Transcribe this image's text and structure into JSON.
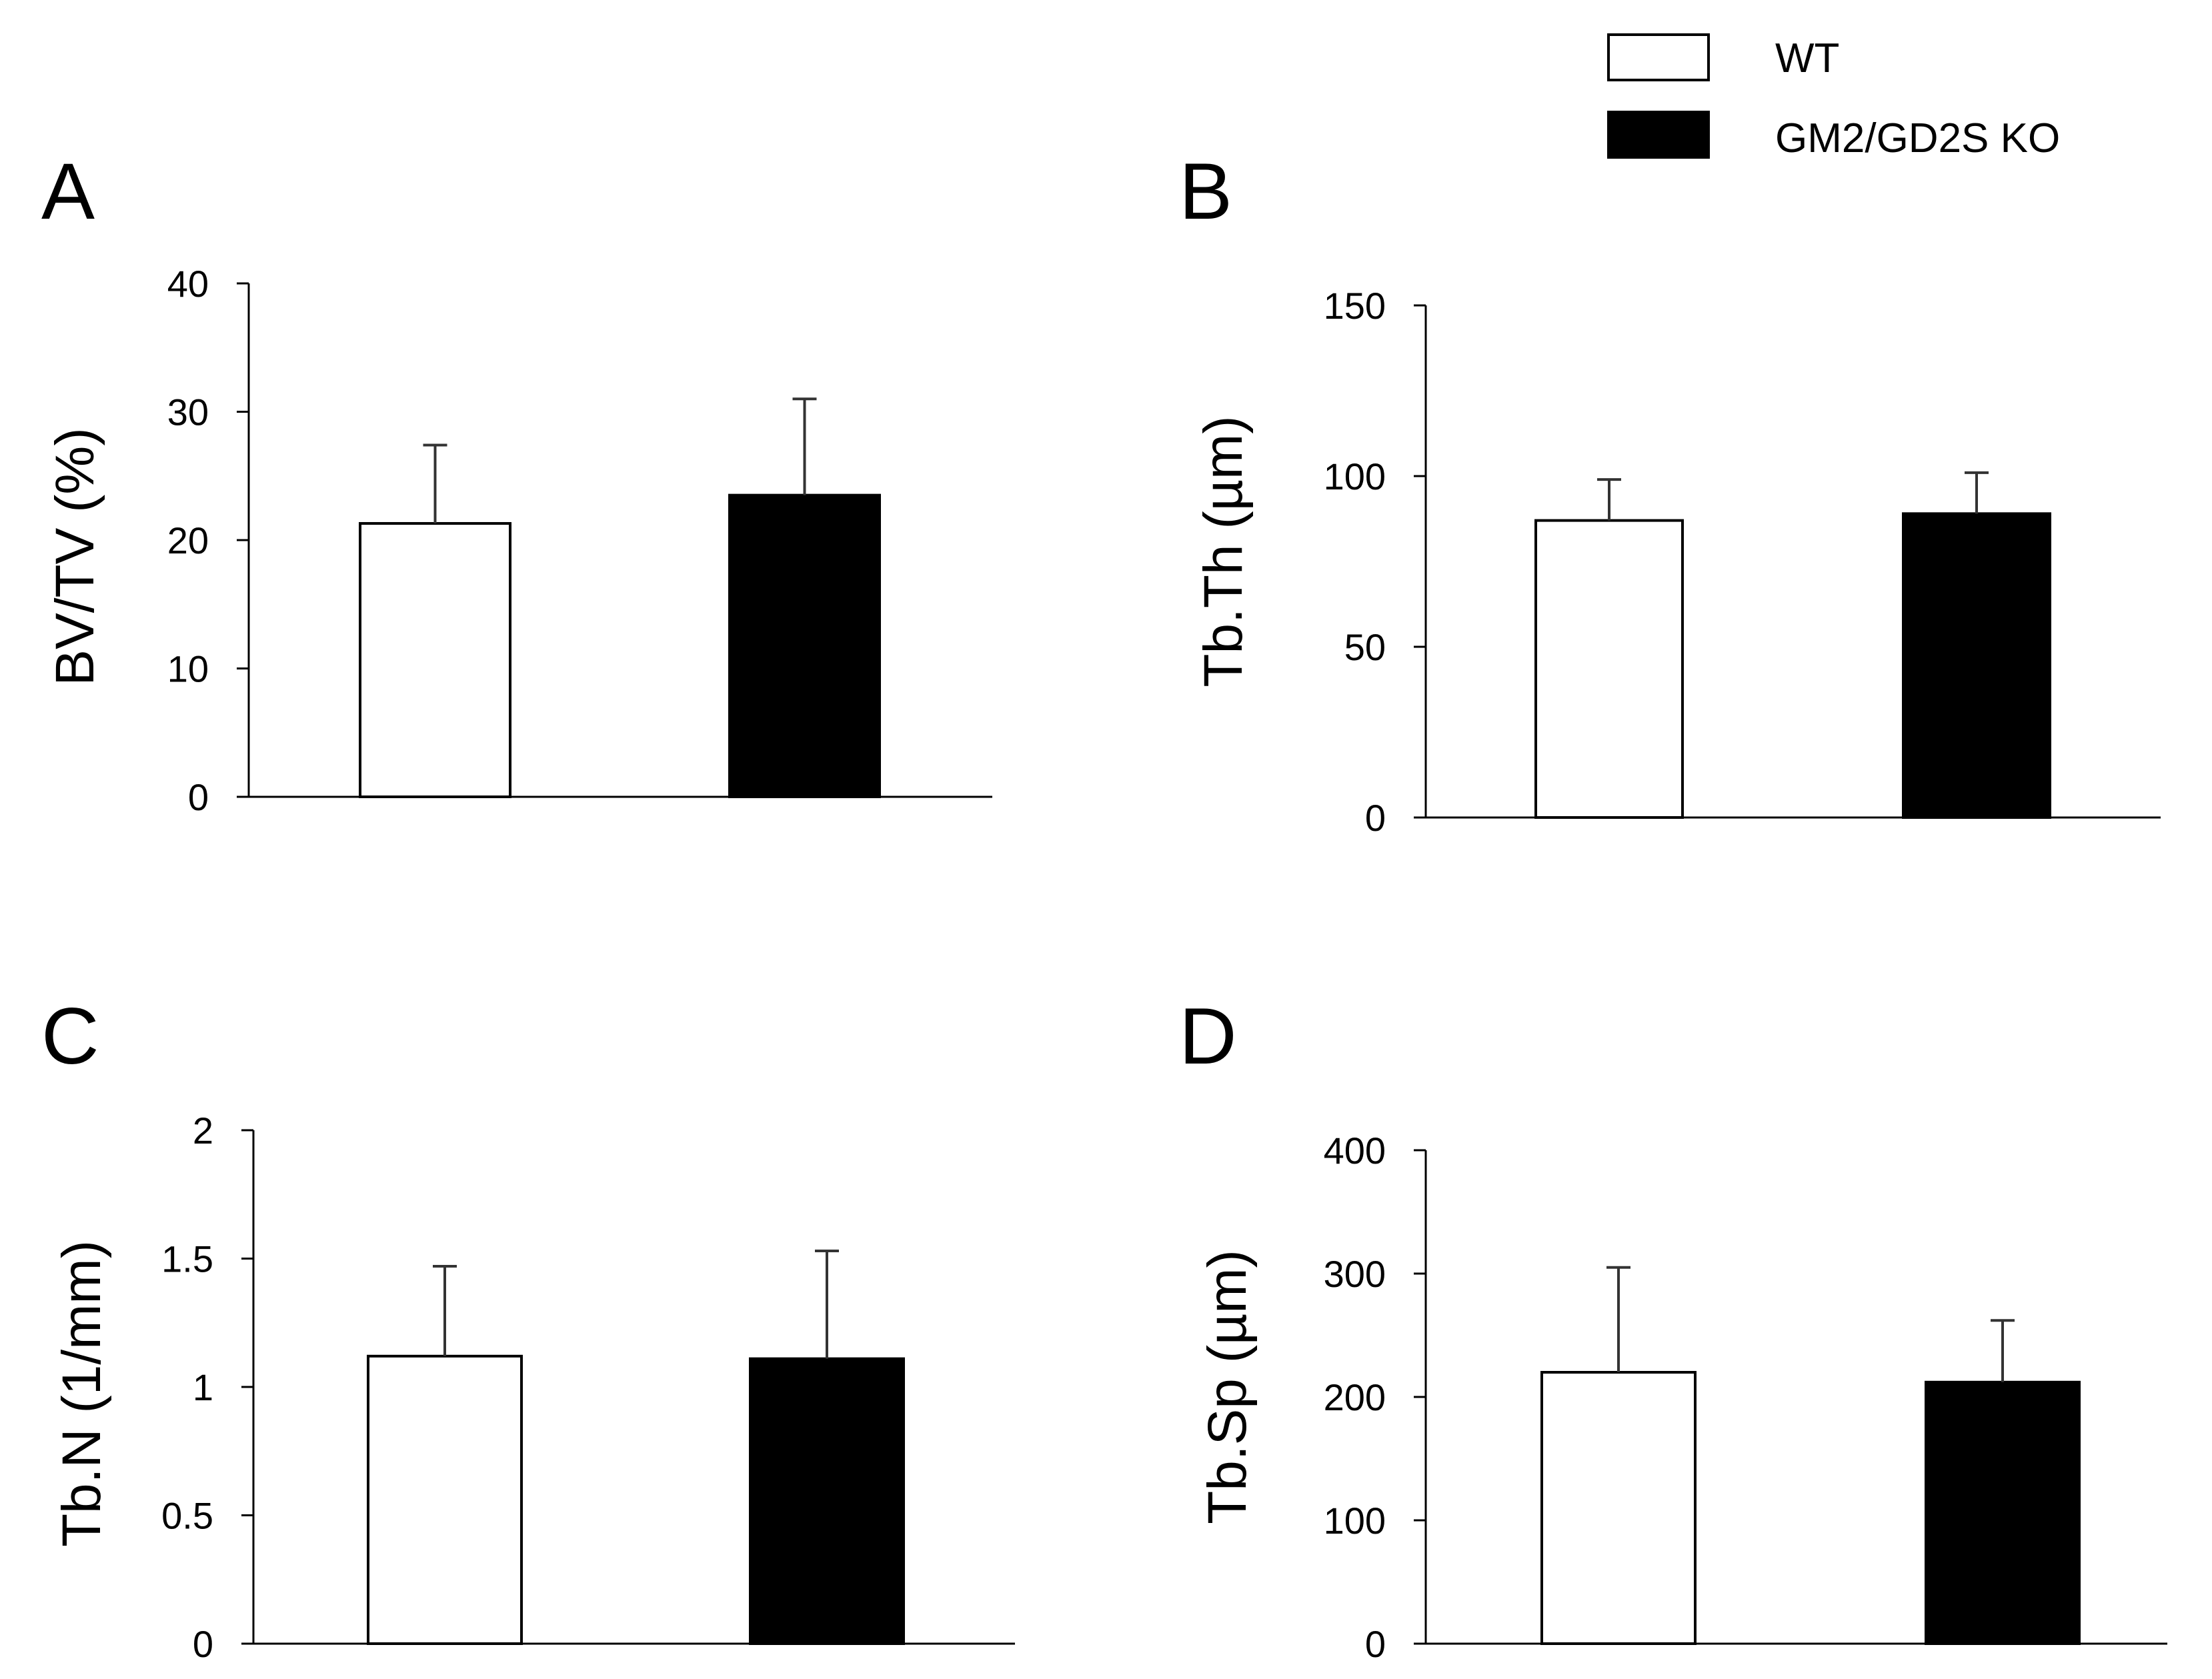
{
  "legend": {
    "entries": [
      {
        "label": "WT",
        "fill": "#ffffff"
      },
      {
        "label": "GM2/GD2S KO",
        "fill": "#000000"
      }
    ]
  },
  "chart_data": [
    {
      "panel": "A",
      "type": "bar",
      "ylabel": "BV/TV (%)",
      "ylim": [
        0,
        40
      ],
      "yticks": [
        0,
        10,
        20,
        30,
        40
      ],
      "ytick_labels": [
        "0",
        "10",
        "20",
        "30",
        "40"
      ],
      "series": [
        {
          "name": "WT",
          "value": 21.3,
          "error": 6.1,
          "fill": "#ffffff"
        },
        {
          "name": "GM2/GD2S KO",
          "value": 23.5,
          "error": 7.5,
          "fill": "#000000"
        }
      ]
    },
    {
      "panel": "B",
      "type": "bar",
      "ylabel": "Tb.Th (µm)",
      "ylim": [
        0,
        150
      ],
      "yticks": [
        0,
        50,
        100,
        150
      ],
      "ytick_labels": [
        "0",
        "50",
        "100",
        "150"
      ],
      "series": [
        {
          "name": "WT",
          "value": 87,
          "error": 12,
          "fill": "#ffffff"
        },
        {
          "name": "GM2/GD2S KO",
          "value": 89,
          "error": 12,
          "fill": "#000000"
        }
      ]
    },
    {
      "panel": "C",
      "type": "bar",
      "ylabel": "Tb.N (1/mm)",
      "ylim": [
        0,
        2
      ],
      "yticks": [
        0,
        0.5,
        1,
        1.5,
        2
      ],
      "ytick_labels": [
        "0",
        "0.5",
        "1",
        "1.5",
        "2"
      ],
      "series": [
        {
          "name": "WT",
          "value": 1.12,
          "error": 0.35,
          "fill": "#ffffff"
        },
        {
          "name": "GM2/GD2S KO",
          "value": 1.11,
          "error": 0.42,
          "fill": "#000000"
        }
      ]
    },
    {
      "panel": "D",
      "type": "bar",
      "ylabel": "Tb.Sp (µm)",
      "ylim": [
        0,
        400
      ],
      "yticks": [
        0,
        100,
        200,
        300,
        400
      ],
      "ytick_labels": [
        "0",
        "100",
        "200",
        "300",
        "400"
      ],
      "series": [
        {
          "name": "WT",
          "value": 220,
          "error": 85,
          "fill": "#ffffff"
        },
        {
          "name": "GM2/GD2S KO",
          "value": 212,
          "error": 50,
          "fill": "#000000"
        }
      ]
    }
  ]
}
